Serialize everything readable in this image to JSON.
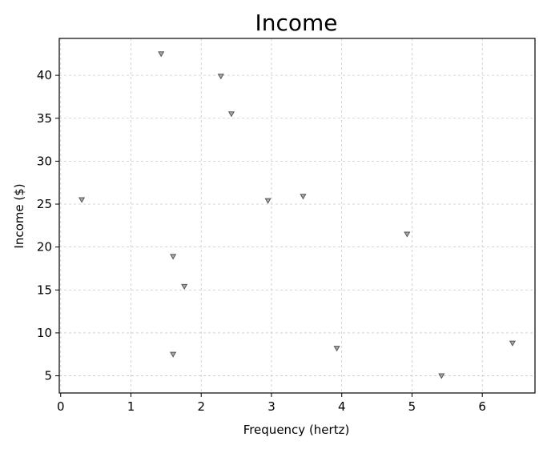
{
  "chart_data": {
    "type": "scatter",
    "title": "Income",
    "xlabel": "Frequency (hertz)",
    "ylabel": "Income ($)",
    "xlim": [
      -0.02,
      6.75
    ],
    "ylim": [
      3.0,
      44.3
    ],
    "xticks": [
      0,
      1,
      2,
      3,
      4,
      5,
      6
    ],
    "yticks": [
      5,
      10,
      15,
      20,
      25,
      30,
      35,
      40
    ],
    "grid": true,
    "marker": "triangle-down",
    "color": "#a9a9a9",
    "points": [
      {
        "x": 0.3,
        "y": 25.5
      },
      {
        "x": 1.43,
        "y": 42.5
      },
      {
        "x": 1.6,
        "y": 18.9
      },
      {
        "x": 1.6,
        "y": 7.5
      },
      {
        "x": 1.76,
        "y": 15.4
      },
      {
        "x": 2.28,
        "y": 39.9
      },
      {
        "x": 2.43,
        "y": 35.5
      },
      {
        "x": 2.95,
        "y": 25.4
      },
      {
        "x": 3.45,
        "y": 25.9
      },
      {
        "x": 3.93,
        "y": 8.2
      },
      {
        "x": 4.93,
        "y": 21.5
      },
      {
        "x": 5.42,
        "y": 5.0
      },
      {
        "x": 6.43,
        "y": 8.8
      }
    ]
  }
}
